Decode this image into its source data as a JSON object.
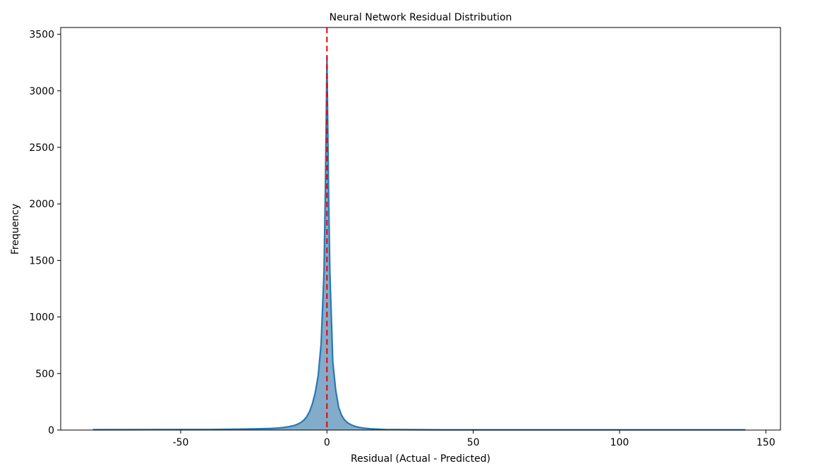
{
  "chart_data": {
    "type": "area",
    "title": "Neural Network Residual Distribution",
    "xlabel": "Residual (Actual - Predicted)",
    "ylabel": "Frequency",
    "xlim": [
      -91,
      155
    ],
    "ylim": [
      0,
      3560
    ],
    "x_ticks": [
      -50,
      0,
      50,
      100,
      150
    ],
    "x_tick_labels": [
      "-50",
      "0",
      "50",
      "100",
      "150"
    ],
    "y_ticks": [
      0,
      500,
      1000,
      1500,
      2000,
      2500,
      3000,
      3500
    ],
    "y_tick_labels": [
      "0",
      "500",
      "1000",
      "1500",
      "2000",
      "2500",
      "3000",
      "3500"
    ],
    "grid": false,
    "colors": {
      "fill": "#2f75a5",
      "line": "#2878b5",
      "reference_line": "#e8000b"
    },
    "reference_line": {
      "orientation": "vertical",
      "x": 0,
      "style": "dashed"
    },
    "series": [
      {
        "x": [
          -80,
          -60,
          -40,
          -30,
          -25,
          -20,
          -17,
          -15,
          -13,
          -11,
          -10,
          -9,
          -8,
          -7,
          -6,
          -5,
          -4,
          -3,
          -2,
          -1,
          -0.5,
          0,
          0.5,
          1,
          2,
          3,
          4,
          5,
          6,
          7,
          8,
          9,
          10,
          11,
          13,
          15,
          18,
          20,
          25,
          30,
          40,
          60,
          80,
          100,
          120,
          143
        ],
        "y": [
          3,
          4,
          5,
          8,
          10,
          13,
          17,
          22,
          30,
          42,
          52,
          65,
          85,
          115,
          160,
          230,
          330,
          480,
          760,
          1400,
          2200,
          3300,
          2200,
          1400,
          600,
          350,
          200,
          130,
          90,
          65,
          50,
          38,
          30,
          24,
          16,
          11,
          7,
          5,
          4,
          3,
          2,
          2,
          2,
          2,
          2,
          2
        ]
      }
    ]
  }
}
